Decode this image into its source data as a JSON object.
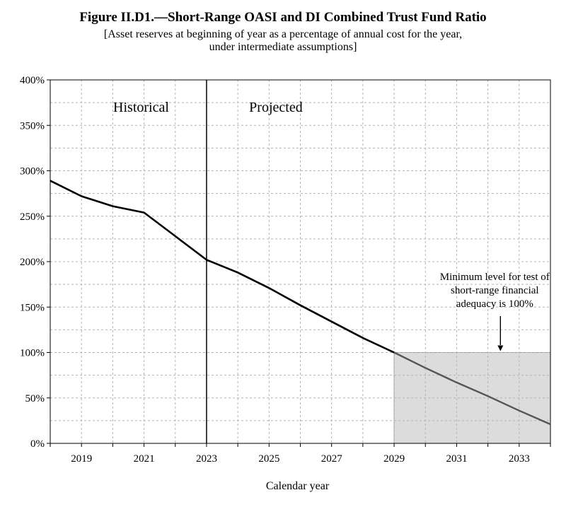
{
  "chart_data": {
    "type": "line",
    "title": "Figure II.D1.—Short-Range OASI and DI Combined Trust Fund Ratio",
    "subtitle_lines": [
      "[Asset reserves at beginning of year as a percentage of annual cost for the year,",
      "under intermediate assumptions]"
    ],
    "xlabel": "Calendar year",
    "ylabel": "",
    "xlim": [
      2018,
      2034
    ],
    "ylim": [
      0,
      400
    ],
    "x_ticks": [
      2019,
      2021,
      2023,
      2025,
      2027,
      2029,
      2031,
      2033
    ],
    "y_ticks": [
      0,
      50,
      100,
      150,
      200,
      250,
      300,
      350,
      400
    ],
    "y_tick_labels": [
      "0%",
      "50%",
      "100%",
      "150%",
      "200%",
      "250%",
      "300%",
      "350%",
      "400%"
    ],
    "grid": true,
    "historical_label": "Historical",
    "projected_label": "Projected",
    "divider_year": 2023,
    "series": [
      {
        "x": [
          2018,
          2019,
          2020,
          2021,
          2022,
          2023,
          2024,
          2025,
          2026,
          2027,
          2028,
          2029,
          2030,
          2031,
          2032,
          2033,
          2034
        ],
        "values": [
          289,
          272,
          261,
          254,
          228,
          202,
          188,
          171,
          152,
          134,
          116,
          100,
          83,
          67,
          52,
          36,
          21
        ]
      }
    ],
    "threshold": {
      "value": 100,
      "x_start": 2029,
      "x_end": 2034,
      "annotation_lines": [
        "Minimum level for test of",
        "short-range financial",
        "adequacy is 100%"
      ],
      "arrow_x": 2032.4,
      "fill_color": "#dcdcdc"
    },
    "line_color": "#000000",
    "projected_line_color": "#555555",
    "grid_color": "#b4b4b4"
  }
}
